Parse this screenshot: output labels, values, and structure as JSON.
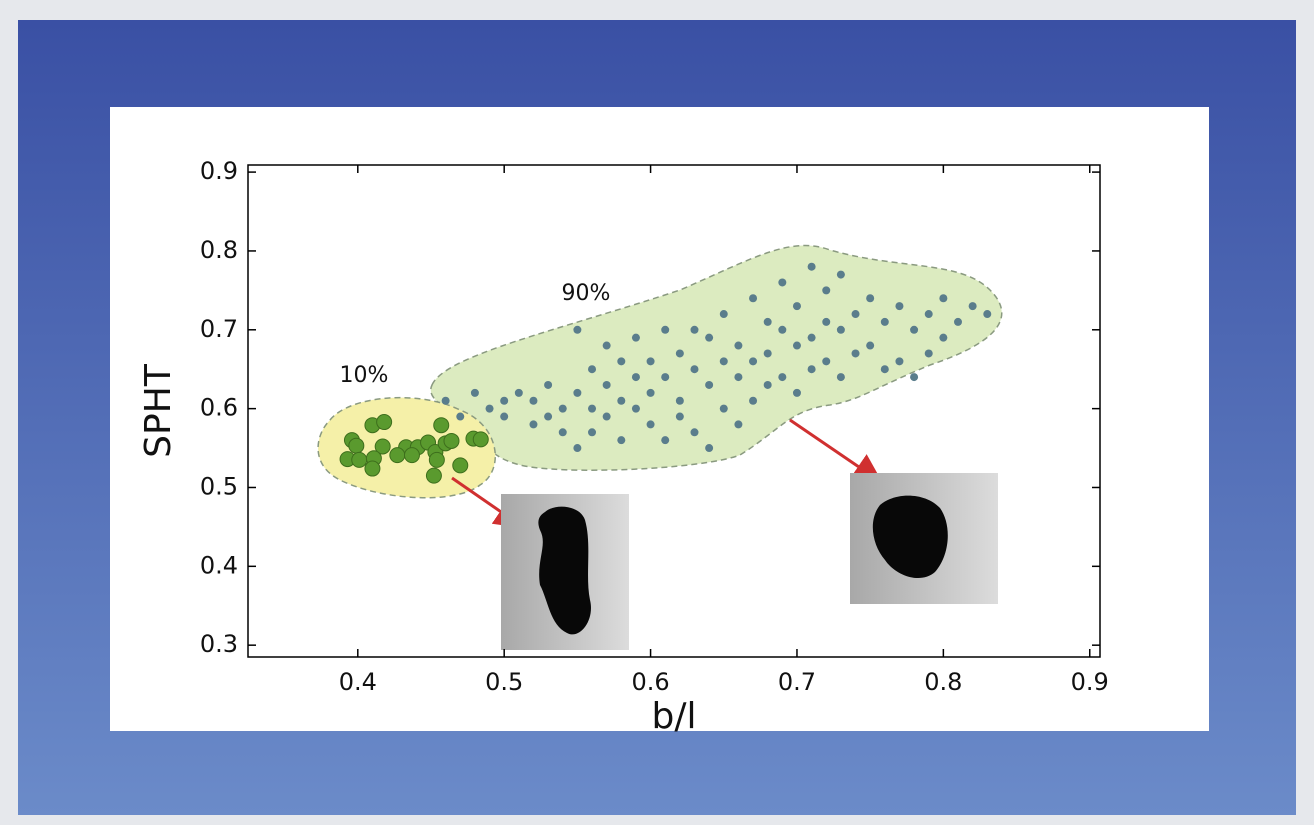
{
  "chart_data": {
    "type": "scatter",
    "x_label": "b/l",
    "y_label": "SPHT",
    "annotations": [
      "10%",
      "90%"
    ],
    "xlim": [
      0.325,
      0.907
    ],
    "ylim": [
      0.285,
      0.909
    ],
    "xticks": [
      0.4,
      0.5,
      0.6,
      0.7,
      0.8,
      0.9
    ],
    "yticks": [
      0.3,
      0.4,
      0.5,
      0.6,
      0.7,
      0.8,
      0.9
    ],
    "series": [
      {
        "color": "#5a9a2e",
        "x": [
          0.396,
          0.399,
          0.41,
          0.418,
          0.417,
          0.393,
          0.401,
          0.411,
          0.41,
          0.433,
          0.441,
          0.448,
          0.453,
          0.457,
          0.46,
          0.464,
          0.454,
          0.452,
          0.47,
          0.479,
          0.484,
          0.427,
          0.437
        ],
        "values": [
          0.56,
          0.553,
          0.579,
          0.583,
          0.552,
          0.536,
          0.535,
          0.537,
          0.524,
          0.551,
          0.551,
          0.557,
          0.545,
          0.579,
          0.556,
          0.559,
          0.535,
          0.515,
          0.528,
          0.562,
          0.561,
          0.541,
          0.541
        ]
      },
      {
        "color": "#5a7d8c",
        "x": [
          0.46,
          0.47,
          0.48,
          0.49,
          0.5,
          0.5,
          0.51,
          0.52,
          0.52,
          0.53,
          0.53,
          0.54,
          0.54,
          0.55,
          0.55,
          0.55,
          0.56,
          0.56,
          0.56,
          0.57,
          0.57,
          0.57,
          0.58,
          0.58,
          0.58,
          0.59,
          0.59,
          0.59,
          0.6,
          0.6,
          0.6,
          0.61,
          0.61,
          0.61,
          0.62,
          0.62,
          0.62,
          0.63,
          0.63,
          0.63,
          0.64,
          0.64,
          0.64,
          0.65,
          0.65,
          0.65,
          0.66,
          0.66,
          0.66,
          0.67,
          0.67,
          0.67,
          0.68,
          0.68,
          0.68,
          0.69,
          0.69,
          0.69,
          0.7,
          0.7,
          0.7,
          0.71,
          0.71,
          0.71,
          0.72,
          0.72,
          0.72,
          0.73,
          0.73,
          0.73,
          0.74,
          0.74,
          0.75,
          0.75,
          0.76,
          0.76,
          0.77,
          0.77,
          0.78,
          0.78,
          0.79,
          0.79,
          0.8,
          0.8,
          0.81,
          0.82,
          0.83
        ],
        "values": [
          0.61,
          0.59,
          0.62,
          0.6,
          0.61,
          0.59,
          0.62,
          0.58,
          0.61,
          0.63,
          0.59,
          0.6,
          0.57,
          0.7,
          0.62,
          0.55,
          0.65,
          0.6,
          0.57,
          0.63,
          0.59,
          0.68,
          0.66,
          0.61,
          0.56,
          0.64,
          0.6,
          0.69,
          0.66,
          0.62,
          0.58,
          0.7,
          0.64,
          0.56,
          0.67,
          0.61,
          0.59,
          0.65,
          0.7,
          0.57,
          0.69,
          0.63,
          0.55,
          0.72,
          0.66,
          0.6,
          0.68,
          0.64,
          0.58,
          0.74,
          0.66,
          0.61,
          0.71,
          0.67,
          0.63,
          0.76,
          0.7,
          0.64,
          0.73,
          0.68,
          0.62,
          0.78,
          0.69,
          0.65,
          0.75,
          0.71,
          0.66,
          0.77,
          0.7,
          0.64,
          0.72,
          0.67,
          0.74,
          0.68,
          0.71,
          0.65,
          0.73,
          0.66,
          0.7,
          0.64,
          0.72,
          0.67,
          0.69,
          0.74,
          0.71,
          0.73,
          0.72
        ]
      }
    ]
  }
}
